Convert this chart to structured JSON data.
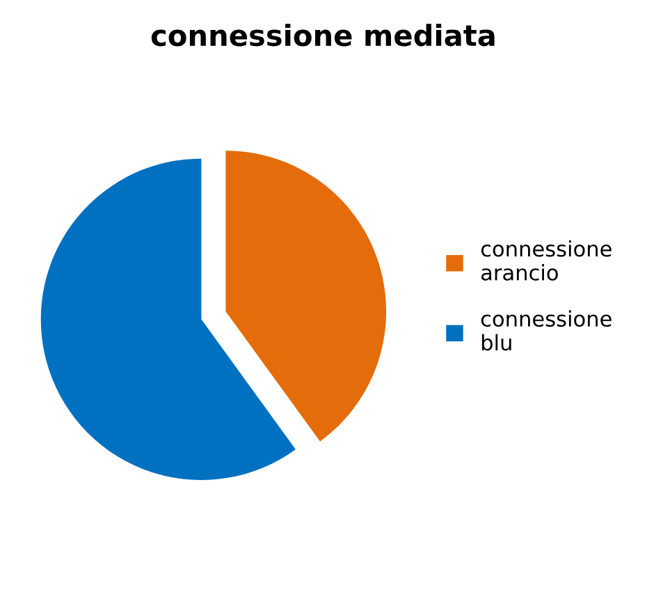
{
  "chart_data": {
    "type": "pie",
    "title": "connessione mediata",
    "categories": [
      "connessione arancio",
      "connessione blu"
    ],
    "values": [
      40,
      60
    ],
    "colors": [
      "#e46c0a",
      "#0070c0"
    ],
    "legend": "right"
  }
}
